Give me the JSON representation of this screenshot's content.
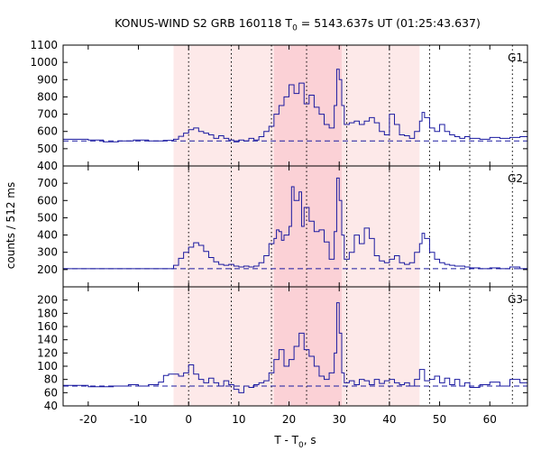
{
  "title": {
    "prefix": "KONUS-WIND S2 GRB 160118 T",
    "subscript": "0",
    "suffix": " = 5143.637s UT (01:25:43.637)"
  },
  "chart_data": {
    "type": "line",
    "x_range": [
      -25,
      67.5
    ],
    "x_ticks": [
      -20,
      -10,
      0,
      10,
      20,
      30,
      40,
      50,
      60
    ],
    "x_tick_labels": [
      "-20",
      "-10",
      "0",
      "10",
      "20",
      "30",
      "40",
      "50",
      "60"
    ],
    "xlabel_prefix": "T - T",
    "xlabel_sub": "0",
    "xlabel_suffix": ", s",
    "ylabel": "counts / 512 ms",
    "colors": {
      "series": "#1a1aa0",
      "background_light": "#fde9e9",
      "background_dark": "#fbd1d6",
      "frame": "#000000",
      "grid": "#000000"
    },
    "shaded_regions": [
      {
        "x": [
          -3.0,
          46.0
        ],
        "shade": "light"
      },
      {
        "x": [
          17.0,
          30.5
        ],
        "shade": "dark"
      }
    ],
    "vertical_dotted_lines": [
      0,
      8.5,
      16.5,
      23.5,
      31.5,
      40.0,
      48.0,
      56.0,
      64.5
    ],
    "panels": [
      {
        "name": "G1",
        "ylim": [
          400,
          1100
        ],
        "y_ticks": [
          400,
          500,
          600,
          700,
          800,
          900,
          1000,
          1100
        ],
        "y_tick_labels": [
          "400",
          "500",
          "600",
          "700",
          "800",
          "900",
          "1000",
          "1100"
        ],
        "background": 545,
        "points": [
          [
            -25,
            555
          ],
          [
            -20,
            550
          ],
          [
            -17,
            540
          ],
          [
            -14,
            545
          ],
          [
            -11,
            550
          ],
          [
            -8,
            545
          ],
          [
            -5,
            548
          ],
          [
            -3,
            555
          ],
          [
            -2,
            572
          ],
          [
            -1,
            590
          ],
          [
            0,
            610
          ],
          [
            1,
            620
          ],
          [
            2,
            600
          ],
          [
            3,
            590
          ],
          [
            4,
            580
          ],
          [
            5,
            560
          ],
          [
            6,
            575
          ],
          [
            7,
            560
          ],
          [
            8,
            550
          ],
          [
            9,
            540
          ],
          [
            10,
            550
          ],
          [
            11,
            545
          ],
          [
            12,
            560
          ],
          [
            13,
            550
          ],
          [
            14,
            570
          ],
          [
            15,
            600
          ],
          [
            16,
            630
          ],
          [
            17,
            700
          ],
          [
            18,
            750
          ],
          [
            19,
            800
          ],
          [
            20,
            870
          ],
          [
            21,
            820
          ],
          [
            22,
            880
          ],
          [
            23,
            760
          ],
          [
            24,
            810
          ],
          [
            25,
            740
          ],
          [
            26,
            700
          ],
          [
            27,
            640
          ],
          [
            28,
            620
          ],
          [
            29,
            750
          ],
          [
            29.5,
            960
          ],
          [
            30,
            900
          ],
          [
            30.5,
            750
          ],
          [
            31,
            640
          ],
          [
            32,
            650
          ],
          [
            33,
            660
          ],
          [
            34,
            640
          ],
          [
            35,
            660
          ],
          [
            36,
            680
          ],
          [
            37,
            650
          ],
          [
            38,
            600
          ],
          [
            39,
            580
          ],
          [
            40,
            700
          ],
          [
            41,
            640
          ],
          [
            42,
            580
          ],
          [
            43,
            575
          ],
          [
            44,
            560
          ],
          [
            45,
            600
          ],
          [
            46,
            660
          ],
          [
            46.5,
            710
          ],
          [
            47,
            680
          ],
          [
            48,
            620
          ],
          [
            49,
            600
          ],
          [
            50,
            640
          ],
          [
            51,
            600
          ],
          [
            52,
            580
          ],
          [
            53,
            570
          ],
          [
            54,
            560
          ],
          [
            55,
            570
          ],
          [
            56,
            560
          ],
          [
            58,
            555
          ],
          [
            60,
            565
          ],
          [
            62,
            560
          ],
          [
            64,
            565
          ],
          [
            66,
            570
          ],
          [
            67.5,
            560
          ]
        ]
      },
      {
        "name": "G2",
        "ylim": [
          100,
          800
        ],
        "y_ticks": [
          200,
          300,
          400,
          500,
          600,
          700
        ],
        "y_tick_labels": [
          "200",
          "300",
          "400",
          "500",
          "600",
          "700"
        ],
        "background": 205,
        "points": [
          [
            -25,
            205
          ],
          [
            -20,
            205
          ],
          [
            -15,
            205
          ],
          [
            -10,
            205
          ],
          [
            -5,
            205
          ],
          [
            -3,
            225
          ],
          [
            -2,
            265
          ],
          [
            -1,
            300
          ],
          [
            0,
            330
          ],
          [
            1,
            355
          ],
          [
            2,
            340
          ],
          [
            3,
            305
          ],
          [
            4,
            270
          ],
          [
            5,
            245
          ],
          [
            6,
            230
          ],
          [
            7,
            225
          ],
          [
            8,
            230
          ],
          [
            9,
            220
          ],
          [
            10,
            215
          ],
          [
            11,
            220
          ],
          [
            12,
            215
          ],
          [
            13,
            220
          ],
          [
            14,
            240
          ],
          [
            15,
            280
          ],
          [
            16,
            350
          ],
          [
            17,
            380
          ],
          [
            17.5,
            430
          ],
          [
            18,
            420
          ],
          [
            18.5,
            370
          ],
          [
            19,
            400
          ],
          [
            20,
            450
          ],
          [
            20.5,
            680
          ],
          [
            21,
            600
          ],
          [
            22,
            650
          ],
          [
            22.5,
            450
          ],
          [
            23,
            560
          ],
          [
            24,
            480
          ],
          [
            25,
            420
          ],
          [
            26,
            430
          ],
          [
            27,
            360
          ],
          [
            28,
            260
          ],
          [
            29,
            420
          ],
          [
            29.5,
            730
          ],
          [
            30,
            600
          ],
          [
            30.5,
            400
          ],
          [
            31,
            260
          ],
          [
            32,
            300
          ],
          [
            33,
            400
          ],
          [
            34,
            350
          ],
          [
            35,
            440
          ],
          [
            36,
            380
          ],
          [
            37,
            280
          ],
          [
            38,
            250
          ],
          [
            39,
            240
          ],
          [
            40,
            260
          ],
          [
            41,
            280
          ],
          [
            42,
            240
          ],
          [
            43,
            230
          ],
          [
            44,
            240
          ],
          [
            45,
            300
          ],
          [
            46,
            350
          ],
          [
            46.5,
            410
          ],
          [
            47,
            380
          ],
          [
            48,
            300
          ],
          [
            49,
            260
          ],
          [
            50,
            240
          ],
          [
            51,
            230
          ],
          [
            52,
            225
          ],
          [
            53,
            220
          ],
          [
            54,
            220
          ],
          [
            55,
            215
          ],
          [
            56,
            210
          ],
          [
            58,
            205
          ],
          [
            60,
            210
          ],
          [
            62,
            205
          ],
          [
            64,
            215
          ],
          [
            66,
            205
          ],
          [
            67.5,
            200
          ]
        ]
      },
      {
        "name": "G3",
        "ylim": [
          40,
          220
        ],
        "y_ticks": [
          40,
          60,
          80,
          100,
          120,
          140,
          160,
          180,
          200
        ],
        "y_tick_labels": [
          "40",
          "60",
          "80",
          "100",
          "120",
          "140",
          "160",
          "180",
          "200"
        ],
        "background": 70,
        "points": [
          [
            -25,
            71
          ],
          [
            -20,
            69
          ],
          [
            -15,
            70
          ],
          [
            -12,
            72
          ],
          [
            -10,
            70
          ],
          [
            -8,
            72
          ],
          [
            -6,
            76
          ],
          [
            -5,
            86
          ],
          [
            -4,
            88
          ],
          [
            -3,
            88
          ],
          [
            -2,
            85
          ],
          [
            -1,
            90
          ],
          [
            0,
            102
          ],
          [
            1,
            88
          ],
          [
            2,
            80
          ],
          [
            3,
            75
          ],
          [
            4,
            82
          ],
          [
            5,
            75
          ],
          [
            6,
            70
          ],
          [
            7,
            78
          ],
          [
            8,
            72
          ],
          [
            9,
            65
          ],
          [
            10,
            60
          ],
          [
            11,
            70
          ],
          [
            12,
            68
          ],
          [
            13,
            72
          ],
          [
            14,
            75
          ],
          [
            15,
            78
          ],
          [
            16,
            90
          ],
          [
            17,
            110
          ],
          [
            18,
            125
          ],
          [
            19,
            100
          ],
          [
            20,
            110
          ],
          [
            21,
            130
          ],
          [
            22,
            150
          ],
          [
            23,
            125
          ],
          [
            24,
            115
          ],
          [
            25,
            100
          ],
          [
            26,
            85
          ],
          [
            27,
            80
          ],
          [
            28,
            90
          ],
          [
            29,
            120
          ],
          [
            29.5,
            196
          ],
          [
            30,
            150
          ],
          [
            30.5,
            90
          ],
          [
            31,
            75
          ],
          [
            32,
            78
          ],
          [
            33,
            72
          ],
          [
            34,
            80
          ],
          [
            35,
            78
          ],
          [
            36,
            72
          ],
          [
            37,
            80
          ],
          [
            38,
            74
          ],
          [
            39,
            78
          ],
          [
            40,
            80
          ],
          [
            41,
            75
          ],
          [
            42,
            72
          ],
          [
            43,
            75
          ],
          [
            44,
            70
          ],
          [
            45,
            80
          ],
          [
            46,
            95
          ],
          [
            47,
            78
          ],
          [
            48,
            80
          ],
          [
            49,
            85
          ],
          [
            50,
            75
          ],
          [
            51,
            82
          ],
          [
            52,
            72
          ],
          [
            53,
            80
          ],
          [
            54,
            70
          ],
          [
            55,
            75
          ],
          [
            56,
            68
          ],
          [
            58,
            72
          ],
          [
            60,
            76
          ],
          [
            62,
            70
          ],
          [
            64,
            80
          ],
          [
            66,
            75
          ],
          [
            67.5,
            78
          ]
        ]
      }
    ]
  }
}
